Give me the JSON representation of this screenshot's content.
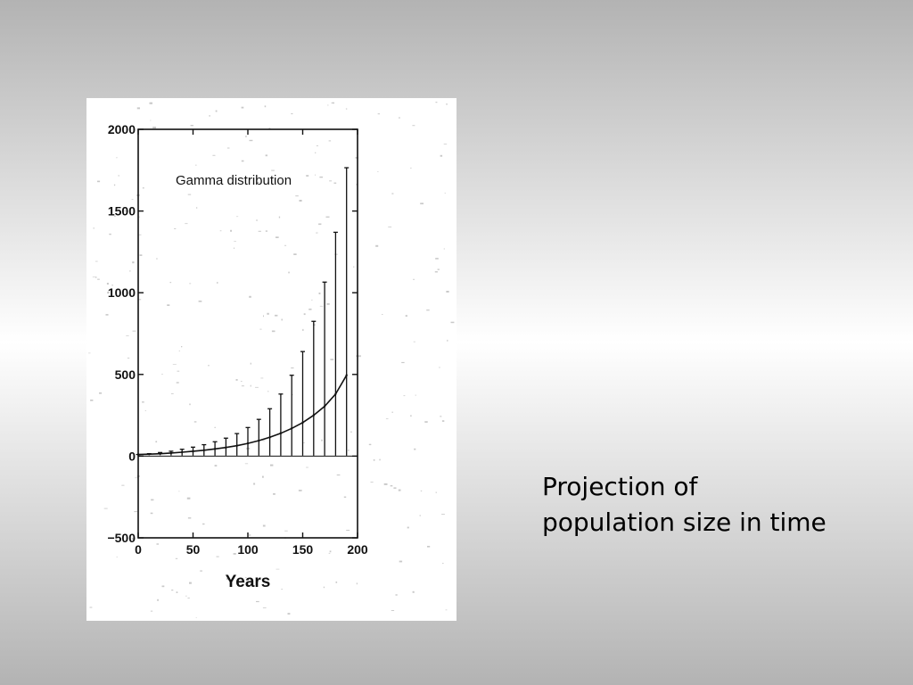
{
  "slide": {
    "caption_lines": [
      "Projection of",
      "population size in time"
    ]
  },
  "chart_data": {
    "type": "line",
    "title": "Gamma distribution",
    "xlabel": "Years",
    "ylabel": "",
    "xlim": [
      0,
      200
    ],
    "ylim": [
      -500,
      2000
    ],
    "x_ticks": [
      0,
      50,
      100,
      150,
      200
    ],
    "y_ticks": [
      -500,
      0,
      500,
      1000,
      1500,
      2000
    ],
    "grid": false,
    "series": [
      {
        "kind": "line-with-errorbars",
        "x": [
          0,
          10,
          20,
          30,
          40,
          50,
          60,
          70,
          80,
          90,
          100,
          110,
          120,
          130,
          140,
          150,
          160,
          170,
          180,
          190
        ],
        "y": [
          10,
          12,
          15,
          19,
          24,
          30,
          36,
          44,
          53,
          64,
          78,
          95,
          115,
          140,
          170,
          205,
          250,
          305,
          380,
          495
        ],
        "upper": [
          10,
          15,
          22,
          30,
          42,
          55,
          70,
          88,
          110,
          138,
          175,
          225,
          290,
          380,
          495,
          640,
          825,
          1065,
          1370,
          1765
        ],
        "lower": [
          10,
          8,
          6,
          4,
          3,
          3,
          3,
          3,
          3,
          3,
          3,
          3,
          3,
          3,
          3,
          3,
          3,
          3,
          3,
          3
        ]
      }
    ]
  }
}
